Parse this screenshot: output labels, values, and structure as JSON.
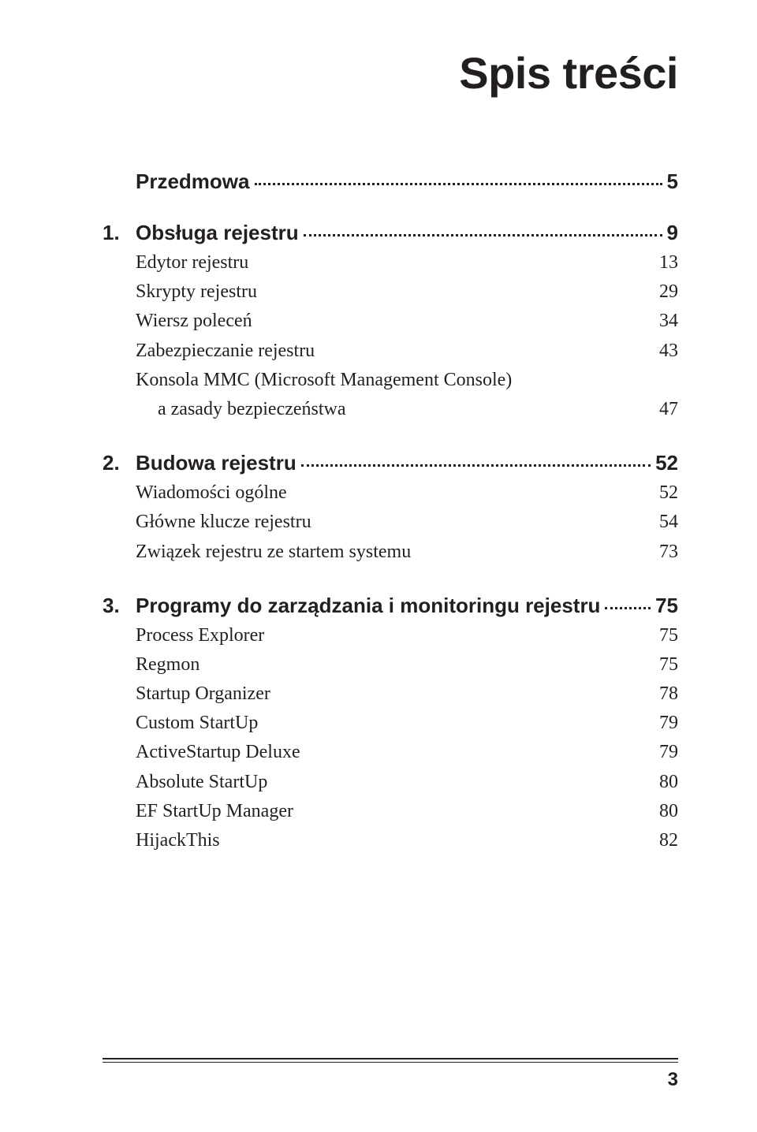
{
  "title": "Spis treści",
  "page_number": "3",
  "chapters": [
    {
      "num": "",
      "label": "Przedmowa",
      "page": "5",
      "entries": []
    },
    {
      "num": "1.",
      "label": "Obsługa rejestru",
      "page": "9",
      "entries": [
        {
          "label": "Edytor rejestru",
          "page": "13",
          "indent": 0
        },
        {
          "label": "Skrypty rejestru",
          "page": "29",
          "indent": 0
        },
        {
          "label": "Wiersz poleceń",
          "page": "34",
          "indent": 0
        },
        {
          "label": "Zabezpieczanie rejestru",
          "page": "43",
          "indent": 0
        },
        {
          "label": "Konsola MMC (Microsoft Management Console)",
          "page": "",
          "indent": 0
        },
        {
          "label": "a zasady bezpieczeństwa",
          "page": "47",
          "indent": 1
        }
      ]
    },
    {
      "num": "2.",
      "label": "Budowa rejestru",
      "page": "52",
      "entries": [
        {
          "label": "Wiadomości ogólne",
          "page": "52",
          "indent": 0
        },
        {
          "label": "Główne klucze rejestru",
          "page": "54",
          "indent": 0
        },
        {
          "label": "Związek rejestru ze startem systemu",
          "page": "73",
          "indent": 0
        }
      ]
    },
    {
      "num": "3.",
      "label": "Programy do zarządzania i monitoringu rejestru",
      "page": "75",
      "entries": [
        {
          "label": "Process Explorer",
          "page": "75",
          "indent": 0
        },
        {
          "label": "Regmon",
          "page": "75",
          "indent": 0
        },
        {
          "label": "Startup Organizer",
          "page": "78",
          "indent": 0
        },
        {
          "label": "Custom StartUp",
          "page": "79",
          "indent": 0
        },
        {
          "label": "ActiveStartup Deluxe",
          "page": "79",
          "indent": 0
        },
        {
          "label": "Absolute StartUp",
          "page": "80",
          "indent": 0
        },
        {
          "label": "EF StartUp Manager",
          "page": "80",
          "indent": 0
        },
        {
          "label": "HijackThis",
          "page": "82",
          "indent": 0
        }
      ]
    }
  ]
}
